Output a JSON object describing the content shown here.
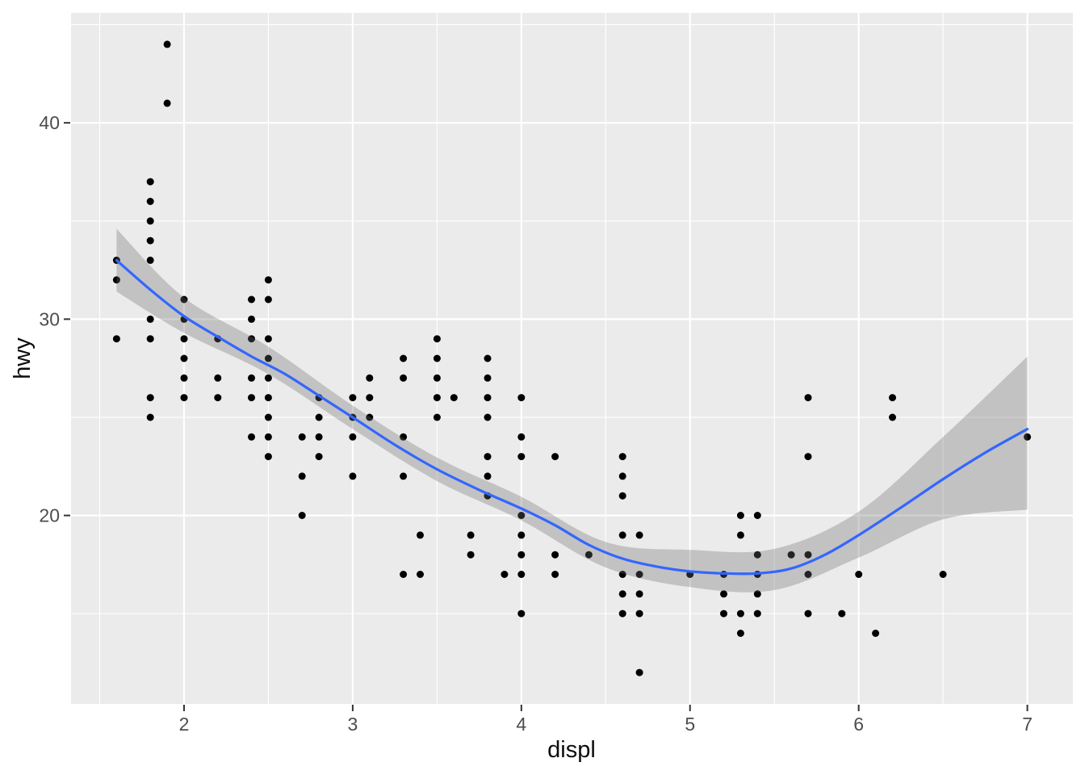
{
  "chart_data": {
    "type": "scatter",
    "title": "",
    "xlabel": "displ",
    "ylabel": "hwy",
    "xlim": [
      1.33,
      7.27
    ],
    "ylim": [
      10.4,
      45.6
    ],
    "x_tick_values": [
      2,
      3,
      4,
      5,
      6,
      7
    ],
    "x_tick_labels": [
      "2",
      "3",
      "4",
      "5",
      "6",
      "7"
    ],
    "x_minor_values": [
      1.5,
      2.5,
      3.5,
      4.5,
      5.5,
      6.5
    ],
    "y_tick_values": [
      20,
      30,
      40
    ],
    "y_tick_labels": [
      "20",
      "30",
      "40"
    ],
    "y_minor_values": [
      15,
      25,
      35,
      45
    ],
    "grid": "on",
    "legend": "none",
    "points": [
      [
        1.6,
        33
      ],
      [
        1.6,
        32
      ],
      [
        1.6,
        29
      ],
      [
        1.8,
        37
      ],
      [
        1.8,
        36
      ],
      [
        1.8,
        35
      ],
      [
        1.8,
        34
      ],
      [
        1.8,
        33
      ],
      [
        1.8,
        30
      ],
      [
        1.8,
        29
      ],
      [
        1.8,
        26
      ],
      [
        1.8,
        25
      ],
      [
        1.9,
        44
      ],
      [
        1.9,
        41
      ],
      [
        2.0,
        31
      ],
      [
        2.0,
        30
      ],
      [
        2.0,
        29
      ],
      [
        2.0,
        28
      ],
      [
        2.0,
        27
      ],
      [
        2.0,
        26
      ],
      [
        2.2,
        29
      ],
      [
        2.2,
        27
      ],
      [
        2.2,
        26
      ],
      [
        2.4,
        31
      ],
      [
        2.4,
        30
      ],
      [
        2.4,
        29
      ],
      [
        2.4,
        27
      ],
      [
        2.4,
        26
      ],
      [
        2.4,
        24
      ],
      [
        2.5,
        32
      ],
      [
        2.5,
        31
      ],
      [
        2.5,
        29
      ],
      [
        2.5,
        28
      ],
      [
        2.5,
        27
      ],
      [
        2.5,
        26
      ],
      [
        2.5,
        25
      ],
      [
        2.5,
        24
      ],
      [
        2.5,
        23
      ],
      [
        2.7,
        24
      ],
      [
        2.7,
        22
      ],
      [
        2.7,
        20
      ],
      [
        2.8,
        26
      ],
      [
        2.8,
        25
      ],
      [
        2.8,
        24
      ],
      [
        2.8,
        23
      ],
      [
        3.0,
        26
      ],
      [
        3.0,
        25
      ],
      [
        3.0,
        24
      ],
      [
        3.0,
        22
      ],
      [
        3.1,
        27
      ],
      [
        3.1,
        26
      ],
      [
        3.1,
        25
      ],
      [
        3.3,
        28
      ],
      [
        3.3,
        27
      ],
      [
        3.3,
        24
      ],
      [
        3.3,
        22
      ],
      [
        3.3,
        17
      ],
      [
        3.4,
        19
      ],
      [
        3.4,
        17
      ],
      [
        3.5,
        29
      ],
      [
        3.5,
        28
      ],
      [
        3.5,
        27
      ],
      [
        3.5,
        26
      ],
      [
        3.5,
        25
      ],
      [
        3.6,
        26
      ],
      [
        3.7,
        19
      ],
      [
        3.7,
        18
      ],
      [
        3.8,
        28
      ],
      [
        3.8,
        27
      ],
      [
        3.8,
        26
      ],
      [
        3.8,
        25
      ],
      [
        3.8,
        23
      ],
      [
        3.8,
        22
      ],
      [
        3.8,
        21
      ],
      [
        3.9,
        17
      ],
      [
        4.0,
        26
      ],
      [
        4.0,
        24
      ],
      [
        4.0,
        23
      ],
      [
        4.0,
        20
      ],
      [
        4.0,
        19
      ],
      [
        4.0,
        18
      ],
      [
        4.0,
        17
      ],
      [
        4.0,
        15
      ],
      [
        4.2,
        23
      ],
      [
        4.2,
        18
      ],
      [
        4.2,
        17
      ],
      [
        4.4,
        18
      ],
      [
        4.6,
        23
      ],
      [
        4.6,
        22
      ],
      [
        4.6,
        21
      ],
      [
        4.6,
        19
      ],
      [
        4.6,
        17
      ],
      [
        4.6,
        16
      ],
      [
        4.6,
        15
      ],
      [
        4.7,
        19
      ],
      [
        4.7,
        17
      ],
      [
        4.7,
        16
      ],
      [
        4.7,
        15
      ],
      [
        4.7,
        12
      ],
      [
        5.0,
        17
      ],
      [
        5.2,
        17
      ],
      [
        5.2,
        16
      ],
      [
        5.2,
        15
      ],
      [
        5.3,
        20
      ],
      [
        5.3,
        19
      ],
      [
        5.3,
        15
      ],
      [
        5.3,
        14
      ],
      [
        5.4,
        20
      ],
      [
        5.4,
        18
      ],
      [
        5.4,
        17
      ],
      [
        5.4,
        16
      ],
      [
        5.4,
        15
      ],
      [
        5.6,
        18
      ],
      [
        5.7,
        26
      ],
      [
        5.7,
        23
      ],
      [
        5.7,
        18
      ],
      [
        5.7,
        17
      ],
      [
        5.7,
        15
      ],
      [
        5.9,
        15
      ],
      [
        6.0,
        17
      ],
      [
        6.1,
        14
      ],
      [
        6.2,
        26
      ],
      [
        6.2,
        25
      ],
      [
        6.5,
        17
      ],
      [
        7.0,
        24
      ]
    ],
    "smooth": {
      "x": [
        1.6,
        1.8,
        2.0,
        2.2,
        2.4,
        2.6,
        2.8,
        3.0,
        3.25,
        3.5,
        3.75,
        4.0,
        4.2,
        4.4,
        4.6,
        4.8,
        5.0,
        5.2,
        5.4,
        5.6,
        5.8,
        6.0,
        6.25,
        6.5,
        6.75,
        7.0
      ],
      "y": [
        33.0,
        31.5,
        30.15,
        29.1,
        28.1,
        27.2,
        26.1,
        25.0,
        23.6,
        22.35,
        21.3,
        20.35,
        19.5,
        18.5,
        17.8,
        17.4,
        17.15,
        17.05,
        17.05,
        17.3,
        18.0,
        19.0,
        20.4,
        21.85,
        23.2,
        24.4
      ]
    },
    "ribbon": {
      "x": [
        1.6,
        2.0,
        2.5,
        3.0,
        3.5,
        4.0,
        4.5,
        5.0,
        5.5,
        6.0,
        6.5,
        7.0
      ],
      "lo": [
        31.4,
        29.3,
        27.2,
        24.4,
        21.75,
        19.75,
        17.35,
        16.35,
        16.2,
        17.85,
        19.8,
        20.3
      ],
      "hi": [
        34.6,
        31.1,
        28.6,
        25.6,
        22.95,
        20.95,
        18.65,
        18.25,
        18.3,
        20.2,
        24.0,
        28.1
      ]
    },
    "style": {
      "figure_bg": "#FFFFFF",
      "panel_bg": "#EBEBEB",
      "grid_color": "#FFFFFF",
      "point_color": "#000000",
      "point_radius": 4.5,
      "line_color": "#3366FF",
      "line_width": 3.2,
      "ribbon_color": "#6E6E6E",
      "ribbon_opacity": 0.32,
      "tick_mark_color": "#333333",
      "tick_label_color": "#4D4D4D",
      "axis_title_color": "#0D0D0D"
    }
  }
}
